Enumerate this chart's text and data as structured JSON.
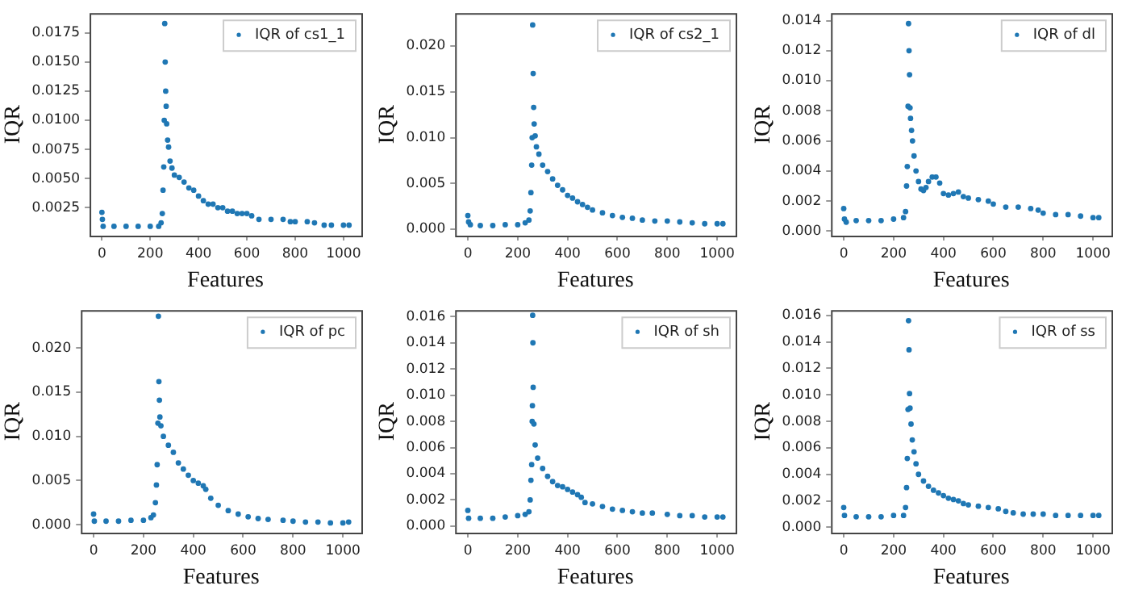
{
  "chart_data": [
    {
      "type": "scatter",
      "xlabel": "Features",
      "ylabel": "IQR",
      "legend": "top right",
      "marker": "circle",
      "grid": false,
      "xlim": [
        -51,
        1074
      ],
      "xticks": [
        0,
        200,
        400,
        600,
        800,
        1000
      ],
      "ylim": [
        0.0001,
        0.0192
      ],
      "yticks": [
        {
          "value": 0.0025,
          "label": "0.0025"
        },
        {
          "value": 0.005,
          "label": "0.0050"
        },
        {
          "value": 0.0075,
          "label": "0.0075"
        },
        {
          "value": 0.01,
          "label": "0.0100"
        },
        {
          "value": 0.0125,
          "label": "0.0125"
        },
        {
          "value": 0.015,
          "label": "0.0150"
        },
        {
          "value": 0.0175,
          "label": "0.0175"
        }
      ],
      "x": [
        0,
        2,
        5,
        50,
        100,
        150,
        200,
        235,
        245,
        250,
        253,
        256,
        258,
        260,
        262,
        264,
        266,
        268,
        272,
        276,
        282,
        290,
        300,
        320,
        340,
        360,
        380,
        400,
        420,
        440,
        460,
        480,
        500,
        520,
        540,
        560,
        580,
        600,
        620,
        650,
        700,
        750,
        780,
        800,
        850,
        880,
        920,
        950,
        1000,
        1023
      ],
      "series": [
        {
          "name": "IQR of cs1_1",
          "color": "#1f77b4",
          "values": [
            0.0021,
            0.0015,
            0.0009,
            0.0009,
            0.0009,
            0.0009,
            0.0009,
            0.0009,
            0.0012,
            0.002,
            0.004,
            0.006,
            0.01,
            0.0183,
            0.015,
            0.0125,
            0.0112,
            0.0097,
            0.0083,
            0.0077,
            0.0065,
            0.0059,
            0.0053,
            0.0051,
            0.0047,
            0.0042,
            0.004,
            0.0035,
            0.0031,
            0.0028,
            0.0028,
            0.0025,
            0.0025,
            0.0022,
            0.0022,
            0.002,
            0.002,
            0.002,
            0.0018,
            0.0015,
            0.0015,
            0.0015,
            0.0013,
            0.0013,
            0.0013,
            0.0012,
            0.001,
            0.001,
            0.001,
            0.001
          ]
        }
      ]
    },
    {
      "type": "scatter",
      "xlabel": "Features",
      "ylabel": "IQR",
      "legend": "top right",
      "marker": "circle",
      "grid": false,
      "xlim": [
        -51,
        1074
      ],
      "xticks": [
        0,
        200,
        400,
        600,
        800,
        1000
      ],
      "ylim": [
        -0.0007,
        0.0236
      ],
      "yticks": [
        {
          "value": 0,
          "label": "0.000"
        },
        {
          "value": 0.005,
          "label": "0.005"
        },
        {
          "value": 0.01,
          "label": "0.010"
        },
        {
          "value": 0.015,
          "label": "0.015"
        },
        {
          "value": 0.02,
          "label": "0.020"
        }
      ],
      "x": [
        0,
        3,
        10,
        50,
        100,
        150,
        200,
        230,
        245,
        250,
        253,
        256,
        258,
        260,
        262,
        264,
        266,
        270,
        275,
        285,
        300,
        320,
        340,
        360,
        380,
        400,
        420,
        440,
        460,
        480,
        500,
        540,
        580,
        620,
        660,
        700,
        750,
        800,
        850,
        900,
        950,
        1000,
        1023
      ],
      "series": [
        {
          "name": "IQR of cs2_1",
          "color": "#1f77b4",
          "values": [
            0.0015,
            0.0008,
            0.0005,
            0.0004,
            0.0004,
            0.0005,
            0.0005,
            0.0007,
            0.001,
            0.002,
            0.004,
            0.007,
            0.01,
            0.0223,
            0.017,
            0.0133,
            0.0115,
            0.0102,
            0.009,
            0.0082,
            0.007,
            0.0063,
            0.0055,
            0.0048,
            0.0043,
            0.0037,
            0.0034,
            0.003,
            0.0027,
            0.0024,
            0.0021,
            0.0018,
            0.0015,
            0.0013,
            0.0012,
            0.001,
            0.0009,
            0.0009,
            0.0008,
            0.0007,
            0.0006,
            0.0006,
            0.0006
          ]
        }
      ]
    },
    {
      "type": "scatter",
      "xlabel": "Features",
      "ylabel": "IQR",
      "legend": "top right",
      "marker": "circle",
      "grid": false,
      "xlim": [
        -51,
        1074
      ],
      "xticks": [
        0,
        200,
        400,
        600,
        800,
        1000
      ],
      "ylim": [
        -0.0003,
        0.0145
      ],
      "yticks": [
        {
          "value": 0,
          "label": "0.000"
        },
        {
          "value": 0.002,
          "label": "0.002"
        },
        {
          "value": 0.004,
          "label": "0.004"
        },
        {
          "value": 0.006,
          "label": "0.006"
        },
        {
          "value": 0.008,
          "label": "0.008"
        },
        {
          "value": 0.01,
          "label": "0.010"
        },
        {
          "value": 0.012,
          "label": "0.012"
        },
        {
          "value": 0.014,
          "label": "0.014"
        }
      ],
      "x": [
        0,
        3,
        10,
        50,
        100,
        150,
        200,
        240,
        248,
        252,
        255,
        258,
        260,
        262,
        264,
        266,
        268,
        272,
        276,
        282,
        290,
        300,
        310,
        320,
        330,
        340,
        355,
        370,
        385,
        400,
        420,
        440,
        460,
        480,
        500,
        540,
        580,
        600,
        650,
        700,
        750,
        780,
        800,
        850,
        900,
        950,
        1000,
        1023
      ],
      "series": [
        {
          "name": "IQR of dl",
          "color": "#1f77b4",
          "values": [
            0.0015,
            0.0008,
            0.0006,
            0.0007,
            0.0007,
            0.0007,
            0.0008,
            0.0009,
            0.0013,
            0.003,
            0.0043,
            0.0083,
            0.0138,
            0.012,
            0.0104,
            0.0082,
            0.0075,
            0.0067,
            0.006,
            0.005,
            0.004,
            0.0033,
            0.0028,
            0.0027,
            0.0029,
            0.0033,
            0.0036,
            0.0036,
            0.0032,
            0.0025,
            0.0024,
            0.0025,
            0.0026,
            0.0023,
            0.0022,
            0.0021,
            0.002,
            0.0018,
            0.0016,
            0.0016,
            0.0015,
            0.0014,
            0.0012,
            0.0011,
            0.0011,
            0.001,
            0.0009,
            0.0009
          ]
        }
      ]
    },
    {
      "type": "scatter",
      "xlabel": "Features",
      "ylabel": "IQR",
      "legend": "top right",
      "marker": "circle",
      "grid": false,
      "xlim": [
        -51,
        1074
      ],
      "xticks": [
        0,
        200,
        400,
        600,
        800,
        1000
      ],
      "ylim": [
        -0.0009,
        0.0243
      ],
      "yticks": [
        {
          "value": 0,
          "label": "0.000"
        },
        {
          "value": 0.005,
          "label": "0.005"
        },
        {
          "value": 0.01,
          "label": "0.010"
        },
        {
          "value": 0.015,
          "label": "0.015"
        },
        {
          "value": 0.02,
          "label": "0.020"
        }
      ],
      "x": [
        0,
        3,
        50,
        100,
        150,
        200,
        230,
        240,
        248,
        252,
        255,
        258,
        260,
        262,
        264,
        266,
        270,
        280,
        300,
        320,
        340,
        360,
        380,
        400,
        420,
        440,
        450,
        470,
        500,
        540,
        580,
        620,
        660,
        700,
        760,
        800,
        850,
        900,
        950,
        1000,
        1023
      ],
      "series": [
        {
          "name": "IQR of pc",
          "color": "#1f77b4",
          "values": [
            0.0012,
            0.0004,
            0.0004,
            0.0004,
            0.0005,
            0.0005,
            0.0008,
            0.0011,
            0.0025,
            0.0045,
            0.0068,
            0.0115,
            0.0236,
            0.0162,
            0.0141,
            0.0122,
            0.0112,
            0.01,
            0.009,
            0.0082,
            0.007,
            0.0063,
            0.0056,
            0.005,
            0.0047,
            0.0044,
            0.004,
            0.003,
            0.0022,
            0.0016,
            0.0012,
            0.0009,
            0.0007,
            0.0006,
            0.0005,
            0.0004,
            0.0003,
            0.0003,
            0.0002,
            0.0002,
            0.0003
          ]
        }
      ]
    },
    {
      "type": "scatter",
      "xlabel": "Features",
      "ylabel": "IQR",
      "legend": "top right",
      "marker": "circle",
      "grid": false,
      "xlim": [
        -51,
        1074
      ],
      "xticks": [
        0,
        200,
        400,
        600,
        800,
        1000
      ],
      "ylim": [
        -0.0005,
        0.0165
      ],
      "yticks": [
        {
          "value": 0,
          "label": "0.000"
        },
        {
          "value": 0.002,
          "label": "0.002"
        },
        {
          "value": 0.004,
          "label": "0.004"
        },
        {
          "value": 0.006,
          "label": "0.006"
        },
        {
          "value": 0.008,
          "label": "0.008"
        },
        {
          "value": 0.01,
          "label": "0.010"
        },
        {
          "value": 0.012,
          "label": "0.012"
        },
        {
          "value": 0.014,
          "label": "0.014"
        },
        {
          "value": 0.016,
          "label": "0.016"
        }
      ],
      "x": [
        0,
        3,
        50,
        100,
        150,
        200,
        230,
        245,
        250,
        253,
        256,
        258,
        259,
        260,
        261,
        262,
        265,
        270,
        280,
        300,
        320,
        340,
        360,
        380,
        400,
        420,
        440,
        455,
        470,
        500,
        540,
        580,
        620,
        660,
        700,
        740,
        800,
        850,
        900,
        950,
        1000,
        1023
      ],
      "series": [
        {
          "name": "IQR of sh",
          "color": "#1f77b4",
          "values": [
            0.0012,
            0.0006,
            0.0006,
            0.0006,
            0.0007,
            0.0008,
            0.0009,
            0.0011,
            0.002,
            0.0035,
            0.0047,
            0.008,
            0.0092,
            0.0161,
            0.014,
            0.0106,
            0.0078,
            0.0062,
            0.0052,
            0.0044,
            0.0038,
            0.0034,
            0.0031,
            0.003,
            0.0028,
            0.0026,
            0.0024,
            0.0022,
            0.0018,
            0.0017,
            0.0015,
            0.0013,
            0.0012,
            0.0011,
            0.001,
            0.001,
            0.0009,
            0.0008,
            0.0008,
            0.0007,
            0.0007,
            0.0007
          ]
        }
      ]
    },
    {
      "type": "scatter",
      "xlabel": "Features",
      "ylabel": "IQR",
      "legend": "top right",
      "marker": "circle",
      "grid": false,
      "xlim": [
        -51,
        1074
      ],
      "xticks": [
        0,
        200,
        400,
        600,
        800,
        1000
      ],
      "ylim": [
        -0.0004,
        0.0164
      ],
      "yticks": [
        {
          "value": 0,
          "label": "0.000"
        },
        {
          "value": 0.002,
          "label": "0.002"
        },
        {
          "value": 0.004,
          "label": "0.004"
        },
        {
          "value": 0.006,
          "label": "0.006"
        },
        {
          "value": 0.008,
          "label": "0.008"
        },
        {
          "value": 0.01,
          "label": "0.010"
        },
        {
          "value": 0.012,
          "label": "0.012"
        },
        {
          "value": 0.014,
          "label": "0.014"
        },
        {
          "value": 0.016,
          "label": "0.016"
        }
      ],
      "x": [
        0,
        3,
        50,
        100,
        150,
        200,
        240,
        248,
        252,
        255,
        258,
        260,
        262,
        264,
        266,
        270,
        275,
        282,
        290,
        300,
        320,
        340,
        360,
        380,
        400,
        420,
        440,
        460,
        480,
        500,
        540,
        580,
        620,
        650,
        680,
        720,
        760,
        800,
        850,
        900,
        950,
        1000,
        1023
      ],
      "series": [
        {
          "name": "IQR of ss",
          "color": "#1f77b4",
          "values": [
            0.0015,
            0.0009,
            0.0008,
            0.0008,
            0.0008,
            0.0009,
            0.0009,
            0.0015,
            0.003,
            0.0052,
            0.0089,
            0.0156,
            0.0134,
            0.0101,
            0.009,
            0.0078,
            0.0066,
            0.0057,
            0.0048,
            0.004,
            0.0035,
            0.0031,
            0.0028,
            0.0026,
            0.0024,
            0.0022,
            0.0021,
            0.002,
            0.0018,
            0.0017,
            0.0016,
            0.0015,
            0.0014,
            0.0012,
            0.0011,
            0.001,
            0.001,
            0.001,
            0.0009,
            0.0009,
            0.0009,
            0.0009,
            0.0009
          ]
        }
      ]
    }
  ]
}
